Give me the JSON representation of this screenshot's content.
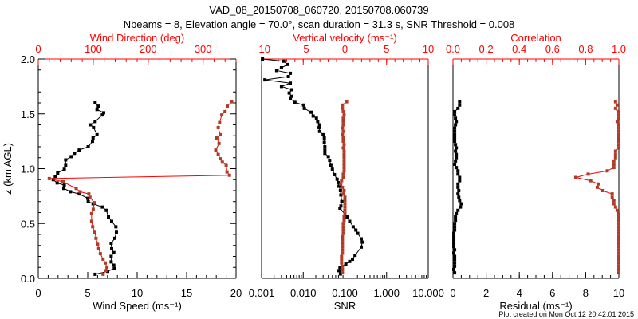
{
  "title": "VAD_08_20150708_060720, 20150708.060739",
  "subtitle": "Nbeams = 8, Elevation angle = 70.0°, scan duration = 31.3 s, SNR Threshold = 0.008",
  "footer": "Plot created on Mon Oct 12 20:42:01 2015",
  "colors": {
    "axis": "#000000",
    "top_axis": "#ff0000",
    "series_black": "#000000",
    "series_brown": "#b03c28",
    "connector_red": "#ff0000"
  },
  "chart_data": [
    {
      "type": "line",
      "ylabel": "z (km AGL)",
      "ylim": [
        0,
        2
      ],
      "yticks": [
        "0.0",
        "0.5",
        "1.0",
        "1.5",
        "2.0"
      ],
      "xlabel": "Wind Speed (ms⁻¹)",
      "xlim": [
        0,
        20
      ],
      "xticks": [
        "0",
        "5",
        "10",
        "15",
        "20"
      ],
      "top_xlabel": "Wind Direction (deg)",
      "top_xlim": [
        0,
        360
      ],
      "top_xticks": [
        "0",
        "100",
        "200",
        "300"
      ],
      "series": [
        {
          "name": "Wind Speed",
          "axis": "bottom",
          "color": "#000000",
          "x": [
            5.75,
            6.07,
            5.94,
            6.61,
            6.48,
            5.75,
            5.27,
            5.59,
            5.94,
            5.54,
            5.48,
            5.05,
            4.14,
            3.66,
            3.33,
            2.77,
            2.77,
            2.63,
            1.96,
            1.72,
            1.51,
            1.91,
            2.63,
            2.58,
            3.25,
            4.14,
            5.0,
            5.05,
            5.54,
            6.48,
            6.88,
            7.1,
            7.42,
            7.85,
            7.9,
            7.74,
            7.37,
            7.42,
            7.64,
            7.37,
            7.37,
            7.64,
            7.69,
            7.02,
            5.75
          ],
          "z": [
            1.6,
            1.57,
            1.54,
            1.51,
            1.49,
            1.43,
            1.4,
            1.375,
            1.31,
            1.28,
            1.25,
            1.2,
            1.17,
            1.14,
            1.11,
            1.08,
            1.03,
            0.995,
            0.96,
            0.93,
            0.9,
            0.87,
            0.85,
            0.82,
            0.79,
            0.77,
            0.73,
            0.7,
            0.68,
            0.65,
            0.62,
            0.56,
            0.52,
            0.47,
            0.42,
            0.365,
            0.32,
            0.27,
            0.235,
            0.2,
            0.15,
            0.12,
            0.09,
            0.064,
            0.037
          ]
        },
        {
          "name": "Wind Direction",
          "axis": "top",
          "color": "#b03c28",
          "x": [
            352,
            344,
            340,
            334,
            330,
            327.5,
            331,
            325,
            329,
            323,
            327.5,
            331,
            335,
            342,
            343.5,
            348,
            20,
            45,
            69,
            76,
            92,
            94,
            102,
            100,
            97,
            97,
            99,
            103,
            105,
            108,
            110,
            113,
            118,
            122,
            125,
            123,
            118
          ],
          "z": [
            1.61,
            1.57,
            1.52,
            1.49,
            1.42,
            1.375,
            1.31,
            1.28,
            1.23,
            1.17,
            1.13,
            1.09,
            1.06,
            1.03,
            0.97,
            0.94,
            0.91,
            0.88,
            0.82,
            0.79,
            0.77,
            0.74,
            0.69,
            0.63,
            0.59,
            0.52,
            0.47,
            0.42,
            0.365,
            0.31,
            0.27,
            0.225,
            0.175,
            0.14,
            0.1,
            0.07,
            0.037
          ]
        }
      ]
    },
    {
      "type": "line",
      "xlabel": "SNR",
      "xscale": "log",
      "xlim": [
        0.001,
        10
      ],
      "xticks": [
        "0.001",
        "0.010",
        "0.100",
        "1.000",
        "10.000"
      ],
      "top_xlabel": "Vertical velocity (ms⁻¹)",
      "top_xlim": [
        -10,
        10
      ],
      "top_xticks": [
        "-10",
        "-5",
        "0",
        "5",
        "10"
      ],
      "ylim": [
        0,
        2
      ],
      "series": [
        {
          "name": "SNR",
          "axis": "bottom",
          "color": "#000000",
          "x": [
            0.00105,
            0.0034,
            0.0042,
            0.003,
            0.0023,
            0.0049,
            0.0044,
            0.0012,
            0.0049,
            0.003,
            0.0053,
            0.0046,
            0.0053,
            0.0049,
            0.0063,
            0.0102,
            0.0106,
            0.0154,
            0.0173,
            0.0207,
            0.0222,
            0.0247,
            0.024,
            0.0247,
            0.03,
            0.032,
            0.032,
            0.033,
            0.033,
            0.033,
            0.04,
            0.043,
            0.046,
            0.05,
            0.056,
            0.065,
            0.069,
            0.072,
            0.078,
            0.08,
            0.084,
            0.08,
            0.076,
            0.113,
            0.13,
            0.158,
            0.183,
            0.203,
            0.247,
            0.261,
            0.247,
            0.175,
            0.152,
            0.13,
            0.105,
            0.076,
            0.072,
            0.078
          ],
          "z": [
            2.0,
            1.98,
            1.95,
            1.92,
            1.895,
            1.87,
            1.84,
            1.81,
            1.78,
            1.75,
            1.72,
            1.69,
            1.66,
            1.64,
            1.605,
            1.58,
            1.55,
            1.515,
            1.48,
            1.46,
            1.43,
            1.4,
            1.375,
            1.34,
            1.31,
            1.28,
            1.24,
            1.2,
            1.17,
            1.14,
            1.11,
            1.076,
            1.03,
            0.995,
            0.946,
            0.904,
            0.873,
            0.84,
            0.8,
            0.76,
            0.7,
            0.66,
            0.64,
            0.56,
            0.52,
            0.47,
            0.44,
            0.41,
            0.36,
            0.33,
            0.285,
            0.21,
            0.174,
            0.154,
            0.13,
            0.1,
            0.07,
            0.04
          ]
        },
        {
          "name": "Vertical velocity",
          "axis": "top",
          "color": "#b03c28",
          "x": [
            0.2,
            -0.3,
            -0.3,
            -0.2,
            -0.1,
            -0.2,
            -0.2,
            -0.2,
            -0.3,
            -0.2,
            -0.3,
            -0.2,
            -0.2,
            -0.1,
            -0.2,
            -0.1,
            -0.1,
            -0.1,
            -0.1,
            -0.1,
            -0.1,
            -0.1,
            -0.2,
            -0.2,
            -0.4,
            -0.5,
            -0.3,
            -0.1,
            -0.2,
            0,
            0,
            0,
            0,
            0,
            0,
            -0.1,
            -0.1,
            -0.2,
            -0.2,
            -0.2,
            -0.2,
            -0.3,
            -0.3,
            -0.3,
            -0.3,
            -0.3,
            -0.3,
            -0.4,
            -0.4,
            -0.4,
            -0.3,
            -0.3,
            -0.3
          ],
          "z": [
            1.61,
            1.58,
            1.55,
            1.52,
            1.49,
            1.46,
            1.43,
            1.4,
            1.37,
            1.34,
            1.31,
            1.28,
            1.25,
            1.22,
            1.19,
            1.16,
            1.13,
            1.1,
            1.07,
            1.04,
            1.01,
            0.98,
            0.95,
            0.92,
            0.89,
            0.86,
            0.83,
            0.8,
            0.77,
            0.74,
            0.71,
            0.68,
            0.65,
            0.62,
            0.59,
            0.56,
            0.53,
            0.5,
            0.47,
            0.44,
            0.41,
            0.38,
            0.35,
            0.32,
            0.29,
            0.26,
            0.23,
            0.2,
            0.17,
            0.14,
            0.11,
            0.08,
            0.05
          ]
        }
      ],
      "reference_line": {
        "axis": "top",
        "value": 0,
        "style": "dotted"
      }
    },
    {
      "type": "line",
      "xlabel": "Residual (ms⁻¹)",
      "xlim": [
        0,
        10
      ],
      "xticks": [
        "0",
        "2",
        "4",
        "6",
        "8",
        "10"
      ],
      "top_xlabel": "Correlation",
      "top_xlim": [
        0,
        1
      ],
      "top_xticks": [
        "0.0",
        "0.2",
        "0.4",
        "0.6",
        "0.8",
        "1.0"
      ],
      "ylim": [
        0,
        2
      ],
      "series": [
        {
          "name": "Residual",
          "axis": "bottom",
          "color": "#000000",
          "x": [
            0.4,
            0.4,
            0.3,
            0.1,
            0.1,
            0.15,
            0.2,
            0.15,
            0.1,
            0.1,
            0.1,
            0.1,
            0.1,
            0.15,
            0.2,
            0.15,
            0.2,
            0.2,
            0.15,
            0.1,
            0.2,
            0.3,
            0.3,
            0.4,
            0.4,
            0.3,
            0.3,
            0.35,
            0.3,
            0.35,
            0.4,
            0.5,
            0.45,
            0.3,
            0.2,
            0.15,
            0.15,
            0.1,
            0.1,
            0.1,
            0.05,
            0.05,
            0.05,
            0.05,
            0.05,
            0.1,
            0.05,
            0.1,
            0.1,
            0.1,
            0.1,
            0.05,
            0.1
          ],
          "z": [
            1.61,
            1.58,
            1.55,
            1.52,
            1.49,
            1.46,
            1.43,
            1.4,
            1.37,
            1.34,
            1.31,
            1.28,
            1.25,
            1.22,
            1.19,
            1.16,
            1.13,
            1.1,
            1.07,
            1.04,
            1.01,
            0.98,
            0.95,
            0.92,
            0.89,
            0.86,
            0.83,
            0.8,
            0.77,
            0.74,
            0.71,
            0.68,
            0.65,
            0.62,
            0.59,
            0.56,
            0.53,
            0.5,
            0.47,
            0.44,
            0.41,
            0.38,
            0.35,
            0.32,
            0.29,
            0.26,
            0.23,
            0.2,
            0.17,
            0.14,
            0.11,
            0.08,
            0.05
          ]
        },
        {
          "name": "Correlation",
          "axis": "top",
          "color": "#b03c28",
          "x": [
            0.98,
            0.99,
            0.98,
            1,
            1,
            1,
            0.99,
            1,
            1,
            1,
            1,
            1,
            1,
            1,
            1,
            0.98,
            0.98,
            0.98,
            0.97,
            0.97,
            0.97,
            0.93,
            0.815,
            0.74,
            0.83,
            0.875,
            0.87,
            0.9,
            0.96,
            0.96,
            0.97,
            0.97,
            0.98,
            0.99,
            1,
            1,
            1,
            1,
            1,
            1,
            1,
            1,
            1,
            1,
            1,
            1,
            1,
            1,
            1,
            1,
            1,
            1,
            1
          ],
          "z": [
            1.61,
            1.58,
            1.55,
            1.52,
            1.49,
            1.46,
            1.43,
            1.4,
            1.37,
            1.34,
            1.31,
            1.28,
            1.25,
            1.22,
            1.19,
            1.16,
            1.13,
            1.1,
            1.07,
            1.04,
            1.01,
            0.98,
            0.95,
            0.92,
            0.89,
            0.86,
            0.83,
            0.8,
            0.77,
            0.74,
            0.71,
            0.68,
            0.65,
            0.62,
            0.59,
            0.56,
            0.53,
            0.5,
            0.47,
            0.44,
            0.41,
            0.38,
            0.35,
            0.32,
            0.29,
            0.26,
            0.23,
            0.2,
            0.17,
            0.14,
            0.11,
            0.08,
            0.05
          ]
        }
      ]
    }
  ]
}
